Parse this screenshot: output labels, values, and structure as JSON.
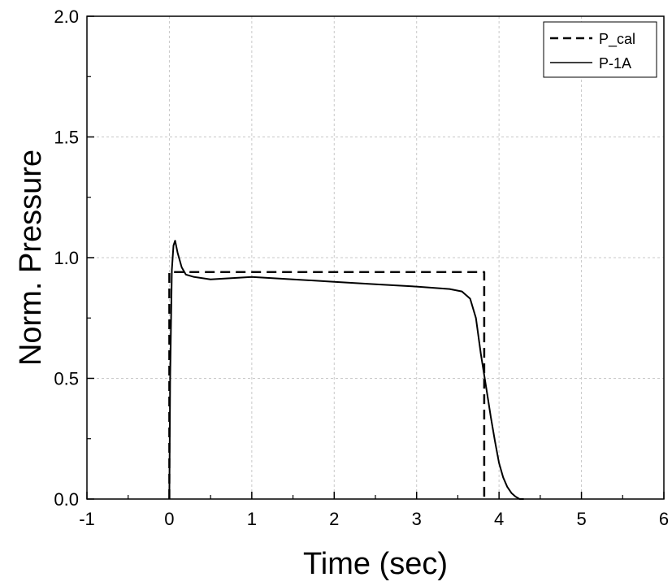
{
  "chart_data": {
    "type": "line",
    "title": "",
    "xlabel": "Time (sec)",
    "ylabel": "Norm. Pressure",
    "xlim": [
      -1,
      6
    ],
    "ylim": [
      0.0,
      2.0
    ],
    "x_ticks": [
      -1,
      0,
      1,
      2,
      3,
      4,
      5,
      6
    ],
    "x_tick_labels": [
      "-1",
      "0",
      "1",
      "2",
      "3",
      "4",
      "5",
      "6"
    ],
    "y_ticks": [
      0.0,
      0.5,
      1.0,
      1.5,
      2.0
    ],
    "y_tick_labels": [
      "0.0",
      "0.5",
      "1.0",
      "1.5",
      "2.0"
    ],
    "grid": true,
    "legend_position": "top-right",
    "series": [
      {
        "name": "P_cal",
        "style": "dashed",
        "color": "#000000",
        "x": [
          0.0,
          0.0,
          3.82,
          3.82
        ],
        "y": [
          0.0,
          0.94,
          0.94,
          0.0
        ]
      },
      {
        "name": "P-1A",
        "style": "solid",
        "color": "#000000",
        "x": [
          0.0,
          0.01,
          0.03,
          0.05,
          0.07,
          0.1,
          0.15,
          0.2,
          0.3,
          0.5,
          1.0,
          1.5,
          2.0,
          2.5,
          3.0,
          3.4,
          3.55,
          3.65,
          3.72,
          3.78,
          3.85,
          3.9,
          3.95,
          4.0,
          4.05,
          4.1,
          4.15,
          4.2,
          4.25,
          4.3
        ],
        "y": [
          0.0,
          0.5,
          0.95,
          1.05,
          1.07,
          1.02,
          0.96,
          0.93,
          0.92,
          0.91,
          0.92,
          0.91,
          0.9,
          0.89,
          0.88,
          0.87,
          0.86,
          0.83,
          0.75,
          0.6,
          0.45,
          0.34,
          0.24,
          0.15,
          0.09,
          0.05,
          0.025,
          0.01,
          0.0,
          0.0
        ]
      }
    ]
  }
}
